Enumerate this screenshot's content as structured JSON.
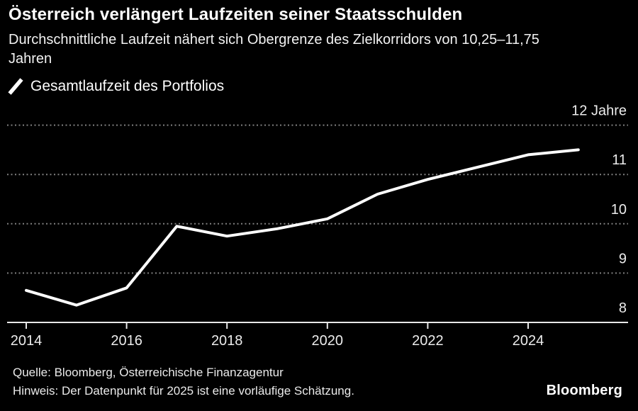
{
  "header": {
    "title": "Österreich verlängert Laufzeiten seiner Staatsschulden",
    "subtitle": "Durchschnittliche Laufzeit nähert sich Obergrenze des Zielkorridors von 10,25–11,75 Jahren"
  },
  "legend": {
    "marker": "white-line-slash-icon",
    "label": "Gesamtlaufzeit des Portfolios"
  },
  "chart_data": {
    "type": "line",
    "title": "Österreich verlängert Laufzeiten seiner Staatsschulden",
    "subtitle": "Durchschnittliche Laufzeit nähert sich Obergrenze des Zielkorridors von 10,25–11,75 Jahren",
    "unit": "Jahre",
    "x": [
      2014,
      2015,
      2016,
      2017,
      2018,
      2019,
      2020,
      2021,
      2022,
      2023,
      2024,
      2025
    ],
    "series": [
      {
        "name": "Gesamtlaufzeit des Portfolios",
        "values": [
          8.65,
          8.35,
          8.7,
          9.95,
          9.75,
          9.9,
          10.1,
          10.6,
          10.9,
          11.15,
          11.4,
          11.5
        ]
      }
    ],
    "x_ticks": [
      2014,
      2016,
      2018,
      2020,
      2022,
      2024
    ],
    "y_ticks": [
      {
        "value": 12,
        "label": "12 Jahre"
      },
      {
        "value": 11,
        "label": "11"
      },
      {
        "value": 10,
        "label": "10"
      },
      {
        "value": 9,
        "label": "9"
      },
      {
        "value": 8,
        "label": "8"
      }
    ],
    "ylim": [
      8,
      12.3
    ],
    "xlim": [
      2013.6,
      2025.9
    ],
    "grid": "horizontal-dotted",
    "legend_position": "top-left"
  },
  "footer": {
    "source": "Quelle: Bloomberg, Österreichische Finanzagentur",
    "note": "Hinweis: Der Datenpunkt für 2025 ist eine vorläufige Schätzung.",
    "brand": "Bloomberg"
  },
  "colors": {
    "background": "#000000",
    "text": "#ffffff",
    "grid": "#808080",
    "axis": "#e8e8e8",
    "tick_label": "#ececec",
    "line": "#ffffff"
  }
}
